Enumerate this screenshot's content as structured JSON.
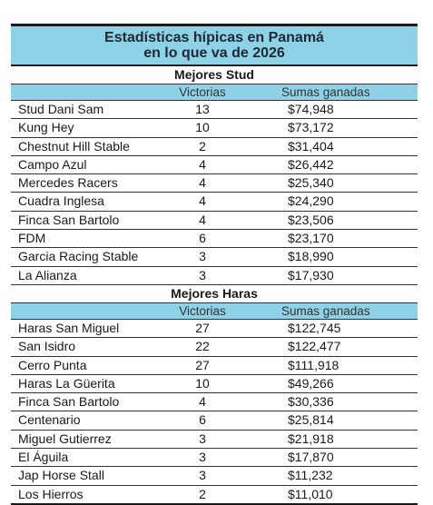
{
  "title": {
    "line1": "Estadísticas hípicas en Panamá",
    "line2": "en lo que va de 2026"
  },
  "columns": {
    "wins": "Victorias",
    "sums": "Sumas ganadas"
  },
  "stud": {
    "heading": "Mejores Stud",
    "rows": [
      {
        "name": "Stud Dani Sam",
        "wins": "13",
        "sum": "$74,948"
      },
      {
        "name": "Kung Hey",
        "wins": "10",
        "sum": "$73,172"
      },
      {
        "name": "Chestnut Hill Stable",
        "wins": "2",
        "sum": "$31,404"
      },
      {
        "name": "Campo Azul",
        "wins": "4",
        "sum": "$26,442"
      },
      {
        "name": "Mercedes Racers",
        "wins": "4",
        "sum": "$25,340"
      },
      {
        "name": "Cuadra Inglesa",
        "wins": "4",
        "sum": "$24,290"
      },
      {
        "name": "Finca San Bartolo",
        "wins": "4",
        "sum": "$23,506"
      },
      {
        "name": "FDM",
        "wins": "6",
        "sum": "$23,170"
      },
      {
        "name": "Garcia Racing Stable",
        "wins": "3",
        "sum": "$18,990"
      },
      {
        "name": "La Alianza",
        "wins": "3",
        "sum": "$17,930"
      }
    ]
  },
  "haras": {
    "heading": "Mejores Haras",
    "rows": [
      {
        "name": "Haras San Miguel",
        "wins": "27",
        "sum": "$122,745"
      },
      {
        "name": "San Isidro",
        "wins": "22",
        "sum": "$122,477"
      },
      {
        "name": "Cerro Punta",
        "wins": "27",
        "sum": "$111,918"
      },
      {
        "name": "Haras La Güerita",
        "wins": "10",
        "sum": "$49,266"
      },
      {
        "name": "Finca San Bartolo",
        "wins": "4",
        "sum": "$30,336"
      },
      {
        "name": "Centenario",
        "wins": "6",
        "sum": "$25,814"
      },
      {
        "name": "Miguel Gutierrez",
        "wins": "3",
        "sum": "$21,918"
      },
      {
        "name": "El Águila",
        "wins": "3",
        "sum": "$17,870"
      },
      {
        "name": "Jap Horse Stall",
        "wins": "3",
        "sum": "$11,232"
      },
      {
        "name": "Los Hierros",
        "wins": "2",
        "sum": "$11,010"
      }
    ]
  }
}
